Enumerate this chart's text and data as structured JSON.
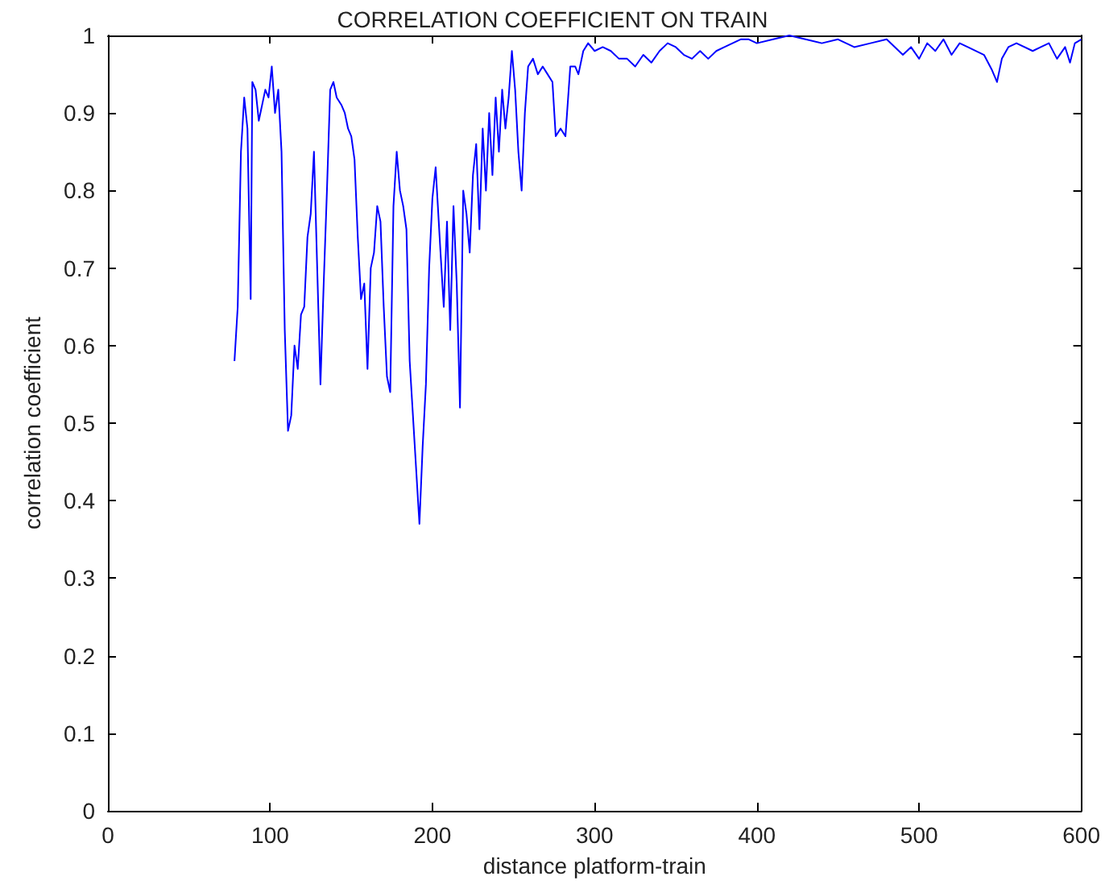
{
  "chart_data": {
    "type": "line",
    "title": "CORRELATION COEFFICIENT ON TRAIN",
    "xlabel": "distance platform-train",
    "ylabel": "correlation coefficient",
    "x": [
      78,
      80,
      82,
      84,
      86,
      88,
      89,
      91,
      93,
      95,
      97,
      99,
      101,
      103,
      105,
      107,
      109,
      111,
      113,
      115,
      117,
      119,
      121,
      123,
      125,
      127,
      129,
      131,
      133,
      135,
      137,
      139,
      141,
      144,
      146,
      148,
      150,
      152,
      154,
      156,
      158,
      160,
      162,
      164,
      166,
      168,
      170,
      172,
      174,
      176,
      178,
      180,
      182,
      184,
      186,
      188,
      190,
      192,
      194,
      196,
      198,
      200,
      202,
      205,
      207,
      209,
      211,
      213,
      215,
      217,
      219,
      221,
      223,
      225,
      227,
      229,
      231,
      233,
      235,
      237,
      239,
      241,
      243,
      245,
      247,
      249,
      251,
      253,
      255,
      257,
      259,
      262,
      265,
      268,
      271,
      274,
      276,
      279,
      282,
      285,
      288,
      290,
      293,
      296,
      300,
      305,
      310,
      315,
      320,
      325,
      330,
      335,
      340,
      345,
      350,
      355,
      360,
      365,
      370,
      375,
      380,
      385,
      390,
      395,
      400,
      410,
      420,
      430,
      440,
      450,
      460,
      470,
      480,
      490,
      495,
      500,
      505,
      510,
      515,
      520,
      525,
      530,
      540,
      545,
      548,
      551,
      555,
      560,
      570,
      575,
      580,
      585,
      590,
      593,
      596,
      600
    ],
    "series": [
      {
        "color": "#0000ff",
        "values": [
          0.58,
          0.65,
          0.85,
          0.92,
          0.88,
          0.66,
          0.94,
          0.93,
          0.89,
          0.91,
          0.93,
          0.92,
          0.96,
          0.9,
          0.93,
          0.85,
          0.62,
          0.49,
          0.51,
          0.6,
          0.57,
          0.64,
          0.65,
          0.74,
          0.77,
          0.85,
          0.7,
          0.55,
          0.68,
          0.8,
          0.93,
          0.94,
          0.92,
          0.91,
          0.9,
          0.88,
          0.87,
          0.84,
          0.74,
          0.66,
          0.68,
          0.57,
          0.7,
          0.72,
          0.78,
          0.76,
          0.65,
          0.56,
          0.54,
          0.78,
          0.85,
          0.8,
          0.78,
          0.75,
          0.58,
          0.51,
          0.44,
          0.37,
          0.47,
          0.55,
          0.7,
          0.79,
          0.83,
          0.72,
          0.65,
          0.76,
          0.62,
          0.78,
          0.68,
          0.52,
          0.8,
          0.77,
          0.72,
          0.82,
          0.86,
          0.75,
          0.88,
          0.8,
          0.9,
          0.82,
          0.92,
          0.85,
          0.93,
          0.88,
          0.92,
          0.98,
          0.93,
          0.85,
          0.8,
          0.9,
          0.96,
          0.97,
          0.95,
          0.96,
          0.95,
          0.94,
          0.87,
          0.88,
          0.87,
          0.96,
          0.96,
          0.95,
          0.98,
          0.99,
          0.98,
          0.985,
          0.98,
          0.97,
          0.97,
          0.96,
          0.975,
          0.965,
          0.98,
          0.99,
          0.985,
          0.975,
          0.97,
          0.98,
          0.97,
          0.98,
          0.985,
          0.99,
          0.995,
          0.995,
          0.99,
          0.995,
          1.0,
          0.995,
          0.99,
          0.995,
          0.985,
          0.99,
          0.995,
          0.975,
          0.985,
          0.97,
          0.99,
          0.98,
          0.995,
          0.975,
          0.99,
          0.985,
          0.975,
          0.955,
          0.94,
          0.97,
          0.985,
          0.99,
          0.98,
          0.985,
          0.99,
          0.97,
          0.985,
          0.965,
          0.99,
          0.995
        ]
      }
    ],
    "xlim": [
      0,
      600
    ],
    "xticks": [
      0,
      100,
      200,
      300,
      400,
      500,
      600
    ],
    "ylim": [
      0,
      1
    ],
    "yticks": [
      0,
      0.1,
      0.2,
      0.3,
      0.4,
      0.5,
      0.6,
      0.7,
      0.8,
      0.9,
      1
    ],
    "grid": false,
    "marker": "none",
    "line_style": "solid"
  }
}
